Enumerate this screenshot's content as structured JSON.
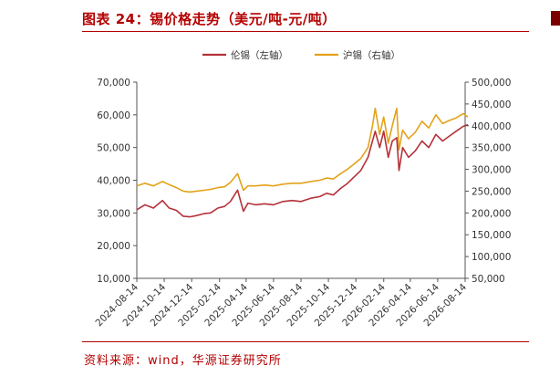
{
  "header": {
    "title": "图表 24：锡价格走势（美元/吨-元/吨）"
  },
  "footer": {
    "source": "资料来源：wind，华源证券研究所"
  },
  "colors": {
    "lme": "#b5313a",
    "shfe": "#e3a21a",
    "accent": "#b30000"
  },
  "chart_data": {
    "type": "line",
    "title": "",
    "xlabel": "",
    "x_ticks": [
      "2024-08-14",
      "2024-10-14",
      "2024-12-14",
      "2025-02-14",
      "2025-04-14",
      "2025-06-14",
      "2025-08-14",
      "2025-10-14",
      "2025-12-14",
      "2026-02-14",
      "2026-04-14",
      "2026-06-14",
      "2026-08-14"
    ],
    "y_left": {
      "ticks": [
        "10,000",
        "20,000",
        "30,000",
        "40,000",
        "50,000",
        "60,000",
        "70,000"
      ],
      "ylim": [
        10000,
        70000
      ]
    },
    "y_right": {
      "ticks": [
        "50,000",
        "100,000",
        "150,000",
        "200,000",
        "250,000",
        "300,000",
        "350,000",
        "400,000",
        "450,000",
        "500,000"
      ],
      "ylim": [
        50000,
        500000
      ]
    },
    "legend": {
      "placement": "top-center"
    },
    "grid": false,
    "series": [
      {
        "name": "伦锡（左轴）",
        "axis": "left",
        "points": [
          [
            "2024-08-14",
            31000
          ],
          [
            "2024-09-01",
            32500
          ],
          [
            "2024-09-20",
            31500
          ],
          [
            "2024-10-10",
            33800
          ],
          [
            "2024-10-25",
            31500
          ],
          [
            "2024-11-10",
            30800
          ],
          [
            "2024-11-25",
            29000
          ],
          [
            "2024-12-10",
            28800
          ],
          [
            "2024-12-25",
            29200
          ],
          [
            "2025-01-10",
            29800
          ],
          [
            "2025-01-25",
            30000
          ],
          [
            "2025-02-10",
            31500
          ],
          [
            "2025-02-25",
            32000
          ],
          [
            "2025-03-10",
            33500
          ],
          [
            "2025-03-26",
            37000
          ],
          [
            "2025-04-08",
            30500
          ],
          [
            "2025-04-18",
            33000
          ],
          [
            "2025-05-05",
            32500
          ],
          [
            "2025-05-25",
            32800
          ],
          [
            "2025-06-14",
            32500
          ],
          [
            "2025-07-05",
            33500
          ],
          [
            "2025-07-25",
            33800
          ],
          [
            "2025-08-14",
            33500
          ],
          [
            "2025-09-05",
            34500
          ],
          [
            "2025-09-25",
            35000
          ],
          [
            "2025-10-10",
            36000
          ],
          [
            "2025-10-25",
            35500
          ],
          [
            "2025-11-10",
            37500
          ],
          [
            "2025-11-25",
            39000
          ],
          [
            "2025-12-10",
            41000
          ],
          [
            "2025-12-25",
            43000
          ],
          [
            "2026-01-10",
            47000
          ],
          [
            "2026-01-20",
            52000
          ],
          [
            "2026-01-26",
            55000
          ],
          [
            "2026-02-05",
            50000
          ],
          [
            "2026-02-14",
            55000
          ],
          [
            "2026-02-24",
            47000
          ],
          [
            "2026-03-05",
            52000
          ],
          [
            "2026-03-15",
            53000
          ],
          [
            "2026-03-20",
            43000
          ],
          [
            "2026-03-28",
            50000
          ],
          [
            "2026-04-10",
            47000
          ],
          [
            "2026-04-25",
            49000
          ],
          [
            "2026-05-10",
            52000
          ],
          [
            "2026-05-25",
            50000
          ],
          [
            "2026-06-10",
            54000
          ],
          [
            "2026-06-25",
            52000
          ],
          [
            "2026-07-10",
            53500
          ],
          [
            "2026-07-25",
            55000
          ],
          [
            "2026-08-10",
            56500
          ],
          [
            "2026-08-20",
            57000
          ]
        ]
      },
      {
        "name": "沪锡（右轴）",
        "axis": "right",
        "points": [
          [
            "2024-08-14",
            262000
          ],
          [
            "2024-09-01",
            268000
          ],
          [
            "2024-09-20",
            262000
          ],
          [
            "2024-10-10",
            272000
          ],
          [
            "2024-10-25",
            265000
          ],
          [
            "2024-11-10",
            258000
          ],
          [
            "2024-11-25",
            250000
          ],
          [
            "2024-12-10",
            248000
          ],
          [
            "2024-12-25",
            250000
          ],
          [
            "2025-01-10",
            252000
          ],
          [
            "2025-01-25",
            254000
          ],
          [
            "2025-02-10",
            258000
          ],
          [
            "2025-02-25",
            260000
          ],
          [
            "2025-03-10",
            270000
          ],
          [
            "2025-03-26",
            290000
          ],
          [
            "2025-04-08",
            252000
          ],
          [
            "2025-04-18",
            262000
          ],
          [
            "2025-05-05",
            262000
          ],
          [
            "2025-05-25",
            264000
          ],
          [
            "2025-06-14",
            262000
          ],
          [
            "2025-07-05",
            266000
          ],
          [
            "2025-07-25",
            268000
          ],
          [
            "2025-08-14",
            268000
          ],
          [
            "2025-09-05",
            272000
          ],
          [
            "2025-09-25",
            275000
          ],
          [
            "2025-10-10",
            280000
          ],
          [
            "2025-10-25",
            278000
          ],
          [
            "2025-11-10",
            290000
          ],
          [
            "2025-11-25",
            300000
          ],
          [
            "2025-12-10",
            312000
          ],
          [
            "2025-12-25",
            325000
          ],
          [
            "2026-01-10",
            350000
          ],
          [
            "2026-01-20",
            400000
          ],
          [
            "2026-01-26",
            440000
          ],
          [
            "2026-02-05",
            380000
          ],
          [
            "2026-02-14",
            420000
          ],
          [
            "2026-02-24",
            360000
          ],
          [
            "2026-03-05",
            400000
          ],
          [
            "2026-03-15",
            440000
          ],
          [
            "2026-03-20",
            345000
          ],
          [
            "2026-03-28",
            390000
          ],
          [
            "2026-04-10",
            370000
          ],
          [
            "2026-04-25",
            385000
          ],
          [
            "2026-05-10",
            410000
          ],
          [
            "2026-05-25",
            395000
          ],
          [
            "2026-06-10",
            425000
          ],
          [
            "2026-06-25",
            405000
          ],
          [
            "2026-07-10",
            412000
          ],
          [
            "2026-07-25",
            418000
          ],
          [
            "2026-08-10",
            428000
          ],
          [
            "2026-08-20",
            420000
          ]
        ]
      }
    ]
  }
}
